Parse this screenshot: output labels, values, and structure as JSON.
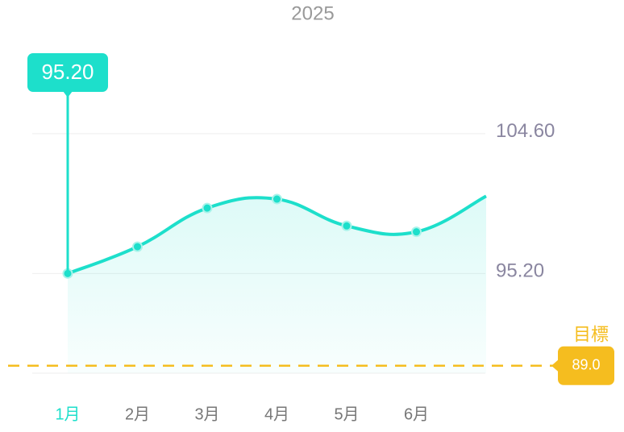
{
  "chart_data": {
    "type": "line",
    "title": "2025",
    "categories": [
      "1月",
      "2月",
      "3月",
      "4月",
      "5月",
      "6月",
      null
    ],
    "series": [
      {
        "name": null,
        "color": "#1ddfcb",
        "values": [
          95.2,
          97.0,
          99.6,
          100.2,
          98.4,
          98.0,
          100.4
        ],
        "value_labels": [
          "95.20",
          null,
          null,
          null,
          null,
          null,
          null
        ]
      }
    ],
    "ylim": [
      88.5,
      106
    ],
    "yticks": [
      {
        "value": 95.2,
        "label": "95.20"
      },
      {
        "value": 104.6,
        "label": "104.60"
      }
    ],
    "grid": true,
    "target": {
      "label": "目標",
      "value": 89.0,
      "value_label": "89.0",
      "color": "#f5bd1f"
    }
  }
}
